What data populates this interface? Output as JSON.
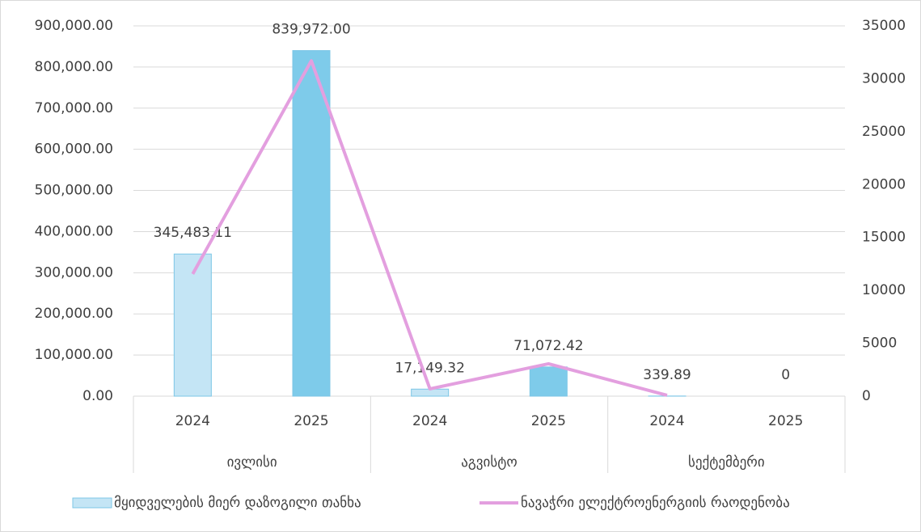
{
  "chart_data": {
    "type": "bar-line",
    "categories": [
      "2024",
      "2025",
      "2024",
      "2025",
      "2024",
      "2025"
    ],
    "groups": [
      "ივლისი",
      "აგვისტო",
      "სექტემბერი"
    ],
    "series": [
      {
        "name": "მყიდველების მიერ დაზოგილი თანხა",
        "type": "bar",
        "color": "#c4e5f5",
        "edge_color": "#7cc6e6",
        "colors": [
          "#c4e5f5",
          "#7ecbea",
          "#c4e5f5",
          "#7ecbea",
          "#c4e5f5",
          "#7ecbea"
        ],
        "values": [
          345483.11,
          839972.0,
          17149.32,
          71072.42,
          339.89,
          0
        ],
        "value_labels": [
          "345,483.11",
          "839,972.00",
          "17,149.32",
          "71,072.42",
          "339.89",
          "0"
        ]
      },
      {
        "name": "ნავაჭრი ელექტროენერგიის რაოდენობა",
        "type": "line",
        "axis": "y2",
        "color": "#e39fdf",
        "values": [
          11550,
          31700,
          690,
          3060,
          80,
          null
        ]
      }
    ],
    "ylim": [
      0,
      900000
    ],
    "yticks": [
      {
        "value": 0,
        "label": "0.00"
      },
      {
        "value": 100000,
        "label": "100,000.00"
      },
      {
        "value": 200000,
        "label": "200,000.00"
      },
      {
        "value": 300000,
        "label": "300,000.00"
      },
      {
        "value": 400000,
        "label": "400,000.00"
      },
      {
        "value": 500000,
        "label": "500,000.00"
      },
      {
        "value": 600000,
        "label": "600,000.00"
      },
      {
        "value": 700000,
        "label": "700,000.00"
      },
      {
        "value": 800000,
        "label": "800,000.00"
      },
      {
        "value": 900000,
        "label": "900,000.00"
      }
    ],
    "y2lim": [
      0,
      35000
    ],
    "y2ticks": [
      0,
      5000,
      10000,
      15000,
      20000,
      25000,
      30000,
      35000
    ],
    "grid": true
  }
}
